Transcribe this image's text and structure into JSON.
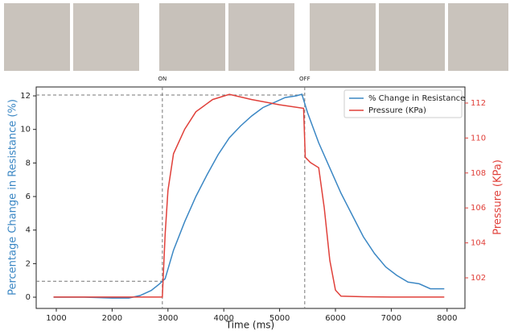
{
  "chart_data": {
    "type": "line",
    "xlabel": "Time (ms)",
    "ylabel": "Percentage Change in Resistance (%)",
    "y2label": "Pressure (KPa)",
    "xlim": [
      640,
      8320
    ],
    "xticks": [
      1000,
      2000,
      3000,
      4000,
      5000,
      6000,
      7000,
      8000
    ],
    "ylim": [
      -0.67,
      12.53
    ],
    "yticks": [
      0,
      2,
      4,
      6,
      8,
      10,
      12
    ],
    "y2lim": [
      100.25,
      112.92
    ],
    "y2ticks": [
      102,
      104,
      106,
      108,
      110,
      112
    ],
    "legend": "upper right",
    "annotations": [
      {
        "text": "ON",
        "x": 2900
      },
      {
        "text": "OFF",
        "x": 5450
      }
    ],
    "hlines": [
      {
        "y": 0.95,
        "x_end": 2900
      },
      {
        "y": 12.05,
        "x_end": 5450
      }
    ],
    "series": [
      {
        "name": "% Change in Resistance",
        "color": "#3b87c4",
        "x": [
          950,
          1500,
          2000,
          2300,
          2500,
          2700,
          2850,
          2950,
          3100,
          3300,
          3500,
          3700,
          3900,
          4100,
          4300,
          4500,
          4700,
          4900,
          5100,
          5300,
          5400,
          5500,
          5700,
          5900,
          6100,
          6300,
          6500,
          6700,
          6900,
          7100,
          7300,
          7500,
          7700,
          7950
        ],
        "values": [
          0,
          0,
          -0.05,
          -0.05,
          0.1,
          0.4,
          0.8,
          1.1,
          2.8,
          4.5,
          6.0,
          7.3,
          8.5,
          9.5,
          10.2,
          10.8,
          11.3,
          11.6,
          11.9,
          12.0,
          12.1,
          11.0,
          9.2,
          7.7,
          6.2,
          4.9,
          3.6,
          2.6,
          1.8,
          1.3,
          0.9,
          0.8,
          0.5,
          0.5
        ]
      },
      {
        "name": "Pressure (KPa)",
        "color": "#e0403a",
        "axis": "y2",
        "x": [
          950,
          2000,
          2900,
          2950,
          3000,
          3100,
          3300,
          3500,
          3800,
          4100,
          4500,
          5000,
          5430,
          5460,
          5550,
          5700,
          5800,
          5900,
          6000,
          6100,
          6500,
          7000,
          7950
        ],
        "values": [
          100.9,
          100.9,
          100.9,
          104.5,
          107.0,
          109.1,
          110.5,
          111.5,
          112.2,
          112.5,
          112.2,
          111.9,
          111.7,
          108.9,
          108.6,
          108.3,
          106.0,
          103.0,
          101.3,
          100.95,
          100.92,
          100.9,
          100.9
        ]
      }
    ]
  }
}
